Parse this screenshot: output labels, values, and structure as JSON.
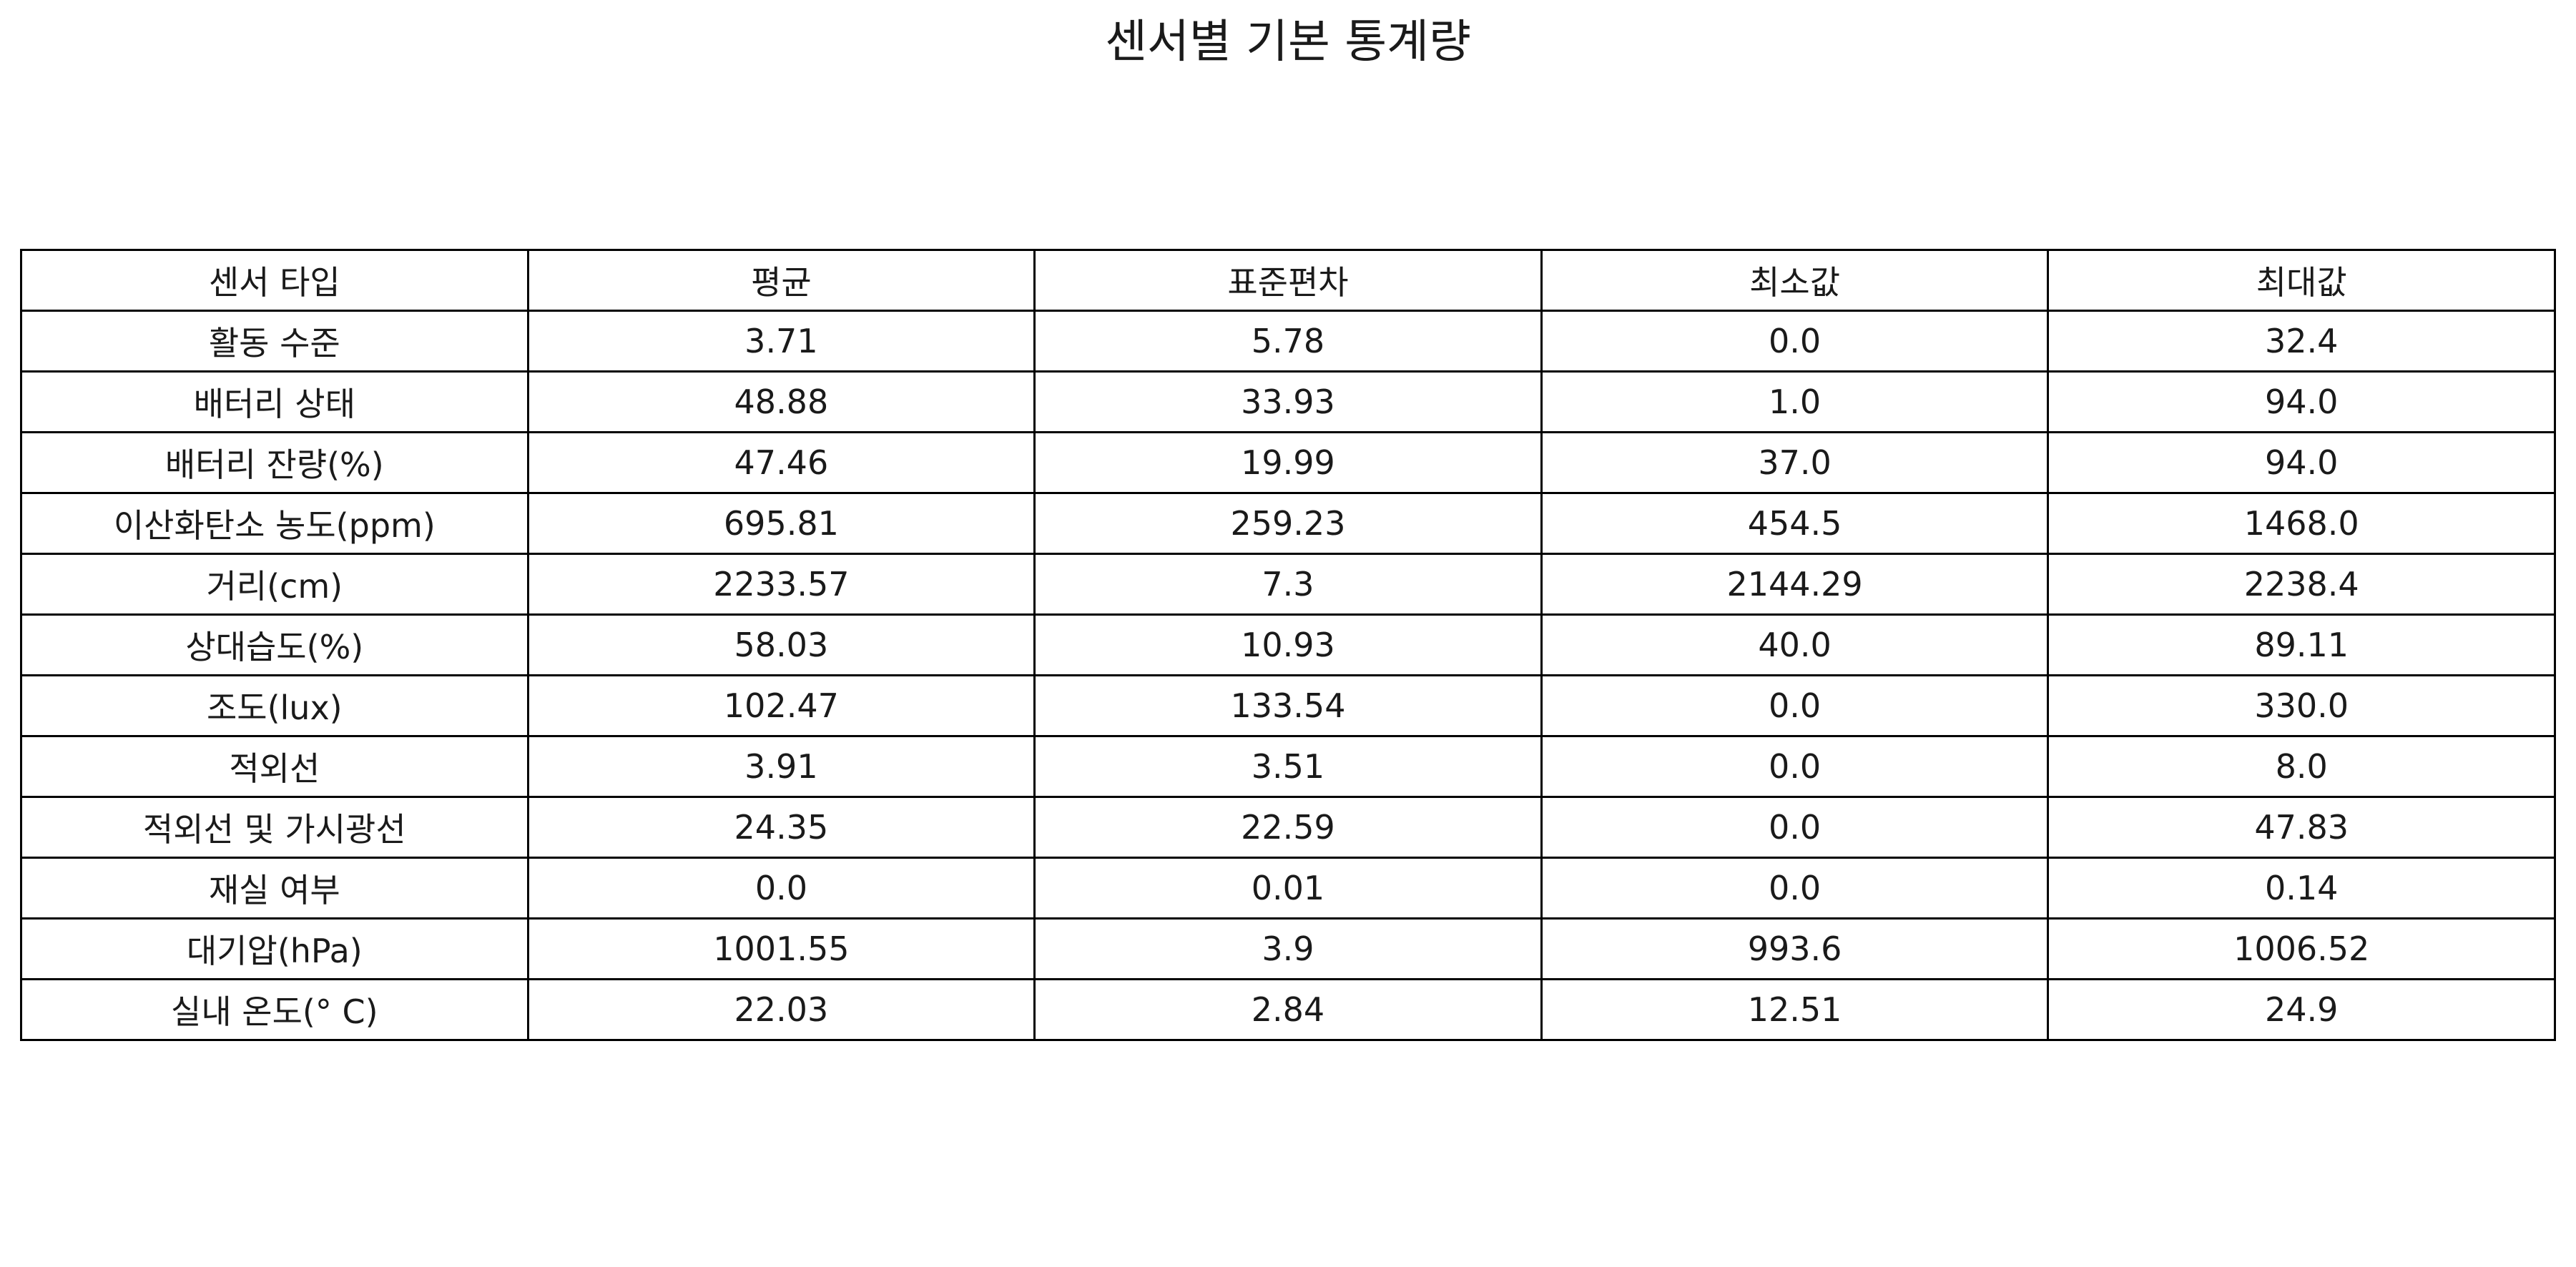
{
  "chart_data": {
    "type": "table",
    "title": "센서별 기본 통계량",
    "columns": [
      "센서 타입",
      "평균",
      "표준편차",
      "최소값",
      "최대값"
    ],
    "rows": [
      [
        "활동 수준",
        "3.71",
        "5.78",
        "0.0",
        "32.4"
      ],
      [
        "배터리 상태",
        "48.88",
        "33.93",
        "1.0",
        "94.0"
      ],
      [
        "배터리 잔량(%)",
        "47.46",
        "19.99",
        "37.0",
        "94.0"
      ],
      [
        "이산화탄소 농도(ppm)",
        "695.81",
        "259.23",
        "454.5",
        "1468.0"
      ],
      [
        "거리(cm)",
        "2233.57",
        "7.3",
        "2144.29",
        "2238.4"
      ],
      [
        "상대습도(%)",
        "58.03",
        "10.93",
        "40.0",
        "89.11"
      ],
      [
        "조도(lux)",
        "102.47",
        "133.54",
        "0.0",
        "330.0"
      ],
      [
        "적외선",
        "3.91",
        "3.51",
        "0.0",
        "8.0"
      ],
      [
        "적외선 및 가시광선",
        "24.35",
        "22.59",
        "0.0",
        "47.83"
      ],
      [
        "재실 여부",
        "0.0",
        "0.01",
        "0.0",
        "0.14"
      ],
      [
        "대기압(hPa)",
        "1001.55",
        "3.9",
        "993.6",
        "1006.52"
      ],
      [
        "실내 온도(° C)",
        "22.03",
        "2.84",
        "12.51",
        "24.9"
      ]
    ]
  }
}
